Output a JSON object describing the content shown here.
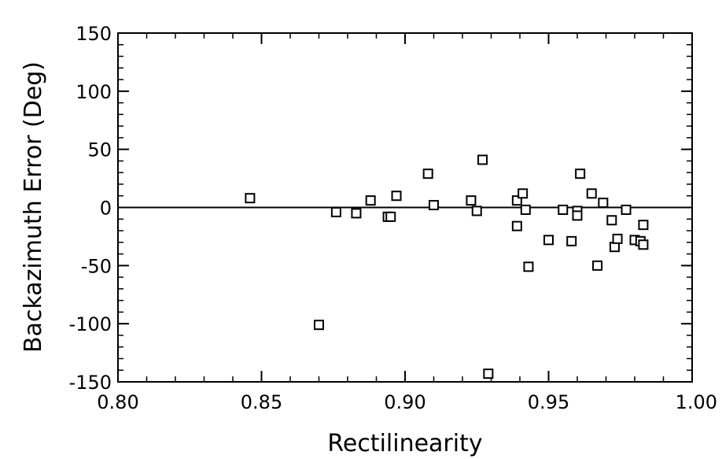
{
  "chart_data": {
    "type": "scatter",
    "xlabel": "Rectilinearity",
    "ylabel": "Backazimuth  Error  (Deg)",
    "xlim": [
      0.8,
      1.0
    ],
    "ylim": [
      -150,
      150
    ],
    "x_ticks": [
      "0.80",
      "0.85",
      "0.90",
      "0.95",
      "1.00"
    ],
    "y_ticks": [
      "-150",
      "-100",
      "-50",
      "0",
      "50",
      "100",
      "150"
    ],
    "x_tick_values": [
      0.8,
      0.85,
      0.9,
      0.95,
      1.0
    ],
    "y_tick_values": [
      -150,
      -100,
      -50,
      0,
      50,
      100,
      150
    ],
    "zero_line": true,
    "grid": false,
    "marker": "open-square",
    "points": [
      {
        "x": 0.846,
        "y": 8
      },
      {
        "x": 0.87,
        "y": -101
      },
      {
        "x": 0.876,
        "y": -4
      },
      {
        "x": 0.883,
        "y": -5
      },
      {
        "x": 0.888,
        "y": 6
      },
      {
        "x": 0.894,
        "y": -8
      },
      {
        "x": 0.895,
        "y": -8
      },
      {
        "x": 0.897,
        "y": 10
      },
      {
        "x": 0.908,
        "y": 29
      },
      {
        "x": 0.91,
        "y": 2
      },
      {
        "x": 0.923,
        "y": 6
      },
      {
        "x": 0.925,
        "y": -3
      },
      {
        "x": 0.927,
        "y": 41
      },
      {
        "x": 0.929,
        "y": -143
      },
      {
        "x": 0.939,
        "y": 6
      },
      {
        "x": 0.939,
        "y": -16
      },
      {
        "x": 0.941,
        "y": 12
      },
      {
        "x": 0.942,
        "y": -2
      },
      {
        "x": 0.943,
        "y": -51
      },
      {
        "x": 0.95,
        "y": -28
      },
      {
        "x": 0.955,
        "y": -2
      },
      {
        "x": 0.958,
        "y": -29
      },
      {
        "x": 0.96,
        "y": -3
      },
      {
        "x": 0.96,
        "y": -7
      },
      {
        "x": 0.961,
        "y": 29
      },
      {
        "x": 0.965,
        "y": 12
      },
      {
        "x": 0.967,
        "y": -50
      },
      {
        "x": 0.969,
        "y": 4
      },
      {
        "x": 0.972,
        "y": -11
      },
      {
        "x": 0.973,
        "y": -34
      },
      {
        "x": 0.974,
        "y": -27
      },
      {
        "x": 0.977,
        "y": -2
      },
      {
        "x": 0.98,
        "y": -28
      },
      {
        "x": 0.982,
        "y": -29
      },
      {
        "x": 0.983,
        "y": -32
      },
      {
        "x": 0.983,
        "y": -15
      }
    ]
  }
}
